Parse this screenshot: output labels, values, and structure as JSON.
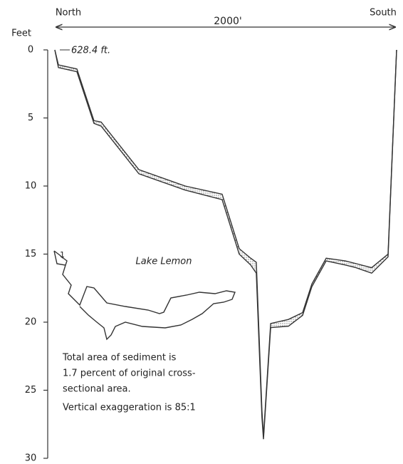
{
  "chart_data": {
    "type": "profile",
    "left_label": "North",
    "right_label": "South",
    "span_label": "2000'",
    "y_label": "Feet",
    "elevation_label": "628.4 ft.",
    "map_label": "Lake Lemon",
    "notes": [
      "Total area of sediment is",
      "1.7 percent of original cross-",
      "sectional area.",
      "Vertical exaggeration is 85:1"
    ],
    "xlim": [
      0,
      2000
    ],
    "ylim": [
      0,
      30
    ],
    "yticks": [
      0,
      5,
      10,
      15,
      20,
      25,
      30
    ],
    "y_inverted": true,
    "line_color": "#333333",
    "profile": {
      "x": [
        0,
        21,
        129,
        229,
        271,
        492,
        763,
        979,
        1079,
        1146,
        1179,
        1212,
        1221,
        1263,
        1367,
        1450,
        1504,
        1588,
        1700,
        1763,
        1854,
        1950,
        2000
      ],
      "surface": [
        0,
        1.1,
        1.4,
        5.2,
        5.3,
        8.8,
        10.0,
        10.6,
        14.6,
        15.3,
        15.6,
        26.5,
        28.4,
        20.1,
        19.8,
        19.3,
        17.2,
        15.3,
        15.5,
        15.7,
        16.0,
        15.0,
        0
      ],
      "bottom": [
        0,
        1.3,
        1.6,
        5.4,
        5.6,
        9.1,
        10.3,
        11.0,
        15.0,
        15.8,
        16.4,
        27.0,
        28.6,
        20.4,
        20.3,
        19.5,
        17.4,
        15.5,
        15.8,
        16.0,
        16.4,
        15.2,
        0
      ]
    }
  }
}
